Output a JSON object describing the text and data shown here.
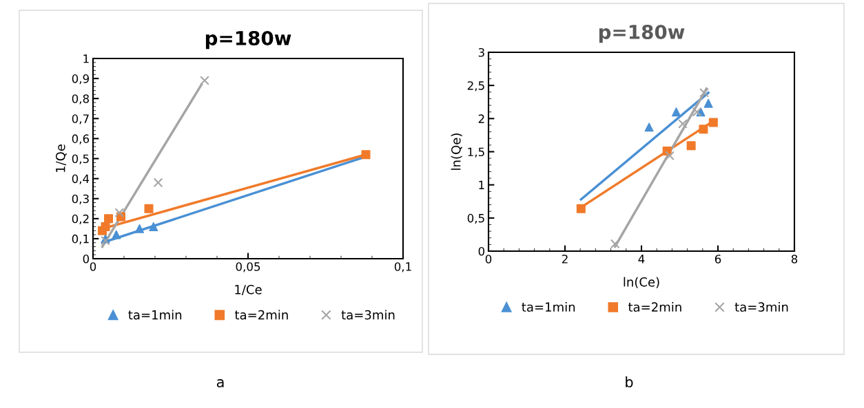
{
  "chart_data": [
    {
      "type": "scatter",
      "title": "p=180w",
      "xlabel": "1/Ce",
      "ylabel": "1/Qe",
      "annotations": [
        "a"
      ],
      "legend": "bottom",
      "grid": false,
      "xlim": [
        0,
        0.1
      ],
      "xticks": [
        0,
        {
          "value": 0.05,
          "label": "0,05"
        },
        {
          "value": 0.1,
          "label": "0,1"
        }
      ],
      "ylim": [
        0,
        1
      ],
      "yticks": [
        0,
        {
          "value": 0.1,
          "label": "0,1"
        },
        {
          "value": 0.2,
          "label": "0,2"
        },
        {
          "value": 0.3,
          "label": "0,3"
        },
        {
          "value": 0.4,
          "label": "0,4"
        },
        {
          "value": 0.5,
          "label": "0,5"
        },
        {
          "value": 0.6,
          "label": "0,6"
        },
        {
          "value": 0.7,
          "label": "0,7"
        },
        {
          "value": 0.8,
          "label": "0,8"
        },
        {
          "value": 0.9,
          "label": "0,9"
        },
        1
      ],
      "series": [
        {
          "name": "ta=1min",
          "marker": "triangle",
          "color": "#4a90d4",
          "x": [
            0.004,
            0.0075,
            0.015,
            0.0195
          ],
          "values": [
            0.1,
            0.12,
            0.15,
            0.16
          ]
        },
        {
          "name": "ta=2min",
          "marker": "square",
          "color": "#f07a2a",
          "x": [
            0.003,
            0.004,
            0.005,
            0.009,
            0.018,
            0.088
          ],
          "values": [
            0.14,
            0.16,
            0.2,
            0.21,
            0.25,
            0.52
          ]
        },
        {
          "name": "ta=3min",
          "marker": "cross",
          "color": "#a5a5a5",
          "x": [
            0.004,
            0.0085,
            0.021,
            0.036
          ],
          "values": [
            0.09,
            0.23,
            0.38,
            0.89
          ]
        },
        {
          "type": "line",
          "color": "#4a90d4",
          "x": [
            0.003,
            0.088
          ],
          "values": [
            0.08,
            0.51
          ]
        },
        {
          "type": "line",
          "color": "#f07a2a",
          "x": [
            0.003,
            0.088
          ],
          "values": [
            0.15,
            0.52
          ]
        },
        {
          "type": "line",
          "color": "#a5a5a5",
          "x": [
            0.003,
            0.035
          ],
          "values": [
            0.06,
            0.87
          ]
        }
      ]
    },
    {
      "type": "scatter",
      "title": "p=180w",
      "xlabel": "ln(Ce)",
      "ylabel": "ln(Qe)",
      "annotations": [
        "b"
      ],
      "legend": "bottom",
      "grid": false,
      "xlim": [
        0,
        8
      ],
      "xticks": [
        0,
        2,
        4,
        6,
        8
      ],
      "ylim": [
        0,
        3
      ],
      "yticks": [
        0,
        {
          "value": 0.5,
          "label": "0,5"
        },
        1,
        {
          "value": 1.5,
          "label": "1,5"
        },
        2,
        {
          "value": 2.5,
          "label": "2,5"
        },
        3
      ],
      "series": [
        {
          "name": "ta=1min",
          "marker": "triangle",
          "color": "#4a90d4",
          "x": [
            4.2,
            4.91,
            5.55,
            5.75
          ],
          "values": [
            1.87,
            2.1,
            2.1,
            2.23
          ]
        },
        {
          "name": "ta=2min",
          "marker": "square",
          "color": "#f07a2a",
          "x": [
            2.42,
            4.67,
            5.3,
            5.62,
            5.88
          ],
          "values": [
            0.64,
            1.51,
            1.59,
            1.84,
            1.94
          ]
        },
        {
          "name": "ta=3min",
          "marker": "cross",
          "color": "#a5a5a5",
          "x": [
            3.31,
            4.74,
            5.08,
            5.45,
            5.64
          ],
          "values": [
            0.11,
            1.44,
            1.92,
            2.1,
            2.39
          ]
        },
        {
          "type": "line",
          "color": "#4a90d4",
          "x": [
            2.42,
            5.75
          ],
          "values": [
            0.78,
            2.39
          ]
        },
        {
          "type": "line",
          "color": "#f07a2a",
          "x": [
            2.42,
            5.9
          ],
          "values": [
            0.66,
            1.97
          ]
        },
        {
          "type": "line",
          "color": "#a5a5a5",
          "x": [
            3.31,
            5.7
          ],
          "values": [
            0.07,
            2.45
          ]
        }
      ]
    }
  ]
}
